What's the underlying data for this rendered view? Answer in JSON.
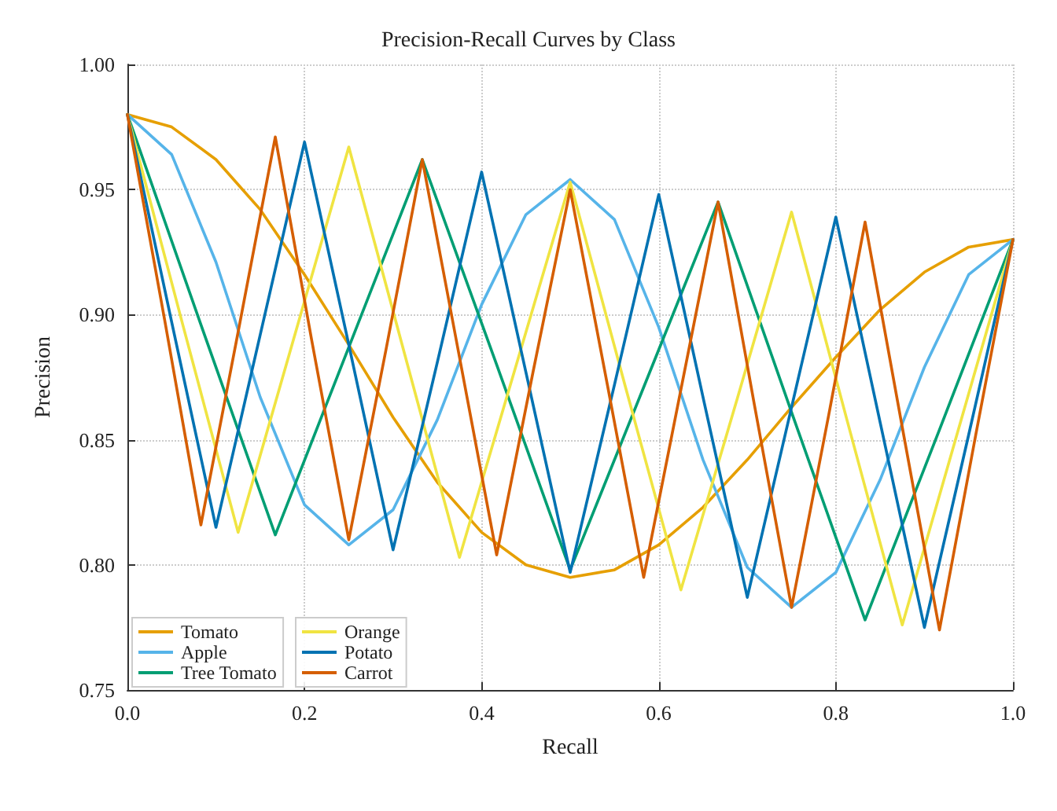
{
  "chart_data": {
    "type": "line",
    "title": "Precision-Recall Curves by Class",
    "xlabel": "Recall",
    "ylabel": "Precision",
    "xlim": [
      0,
      1
    ],
    "ylim": [
      0.75,
      1.0
    ],
    "xticks": [
      {
        "value": 0,
        "label": "0.0"
      },
      {
        "value": 0.2,
        "label": "0.2"
      },
      {
        "value": 0.4,
        "label": "0.4"
      },
      {
        "value": 0.6,
        "label": "0.6"
      },
      {
        "value": 0.8,
        "label": "0.8"
      },
      {
        "value": 1,
        "label": "1.0"
      }
    ],
    "yticks": [
      0.75,
      {
        "value": 0.8,
        "label": "0.80"
      },
      0.85,
      {
        "value": 0.9,
        "label": "0.90"
      },
      0.95,
      {
        "value": 1.0,
        "label": "1.00"
      }
    ],
    "grid": true,
    "legend": "bottom left",
    "marker": "none",
    "line_style": "solid",
    "series": [
      {
        "name": "Tomato",
        "color": "#e69f00",
        "x": [
          0,
          0.05,
          0.1,
          0.15,
          0.2,
          0.25,
          0.3,
          0.35,
          0.4,
          0.45,
          0.5,
          0.55,
          0.6,
          0.65,
          0.7,
          0.75,
          0.8,
          0.85,
          0.9,
          0.95,
          1.0
        ],
        "values": [
          0.98,
          0.975,
          0.962,
          0.942,
          0.916,
          0.888,
          0.859,
          0.833,
          0.813,
          0.8,
          0.795,
          0.798,
          0.808,
          0.823,
          0.842,
          0.863,
          0.883,
          0.902,
          0.917,
          0.927,
          0.93
        ]
      },
      {
        "name": "Apple",
        "color": "#56b4e9",
        "x": [
          0,
          0.05,
          0.1,
          0.15,
          0.2,
          0.25,
          0.3,
          0.35,
          0.4,
          0.45,
          0.5,
          0.55,
          0.6,
          0.65,
          0.7,
          0.75,
          0.8,
          0.85,
          0.9,
          0.95,
          1.0
        ],
        "values": [
          0.98,
          0.964,
          0.921,
          0.867,
          0.824,
          0.808,
          0.822,
          0.858,
          0.904,
          0.94,
          0.954,
          0.938,
          0.895,
          0.842,
          0.799,
          0.783,
          0.797,
          0.834,
          0.879,
          0.916,
          0.93
        ]
      },
      {
        "name": "Tree Tomato",
        "color": "#009e73",
        "x": [
          0,
          0.083,
          0.167,
          0.25,
          0.333,
          0.417,
          0.5,
          0.583,
          0.667,
          0.75,
          0.833,
          0.917,
          1.0
        ],
        "values": [
          0.98,
          0.896,
          0.812,
          0.887,
          0.962,
          0.88,
          0.798,
          0.871,
          0.945,
          0.861,
          0.778,
          0.854,
          0.93
        ]
      },
      {
        "name": "Orange",
        "color": "#f0e442",
        "x": [
          0,
          0.0625,
          0.125,
          0.1875,
          0.25,
          0.3125,
          0.375,
          0.4375,
          0.5,
          0.5625,
          0.625,
          0.6875,
          0.75,
          0.8125,
          0.875,
          0.9375,
          1.0
        ],
        "values": [
          0.98,
          0.896,
          0.813,
          0.89,
          0.967,
          0.885,
          0.803,
          0.878,
          0.953,
          0.871,
          0.79,
          0.865,
          0.941,
          0.858,
          0.776,
          0.853,
          0.93
        ]
      },
      {
        "name": "Potato",
        "color": "#0072b2",
        "x": [
          0,
          0.05,
          0.1,
          0.15,
          0.2,
          0.25,
          0.3,
          0.35,
          0.4,
          0.45,
          0.5,
          0.55,
          0.6,
          0.65,
          0.7,
          0.75,
          0.8,
          0.85,
          0.9,
          0.95,
          1.0
        ],
        "values": [
          0.98,
          0.897,
          0.815,
          0.892,
          0.969,
          0.888,
          0.806,
          0.881,
          0.957,
          0.877,
          0.797,
          0.872,
          0.948,
          0.867,
          0.787,
          0.863,
          0.939,
          0.857,
          0.775,
          0.852,
          0.93
        ]
      },
      {
        "name": "Carrot",
        "color": "#d55e00",
        "x": [
          0,
          0.042,
          0.083,
          0.125,
          0.167,
          0.208,
          0.25,
          0.292,
          0.333,
          0.375,
          0.417,
          0.458,
          0.5,
          0.542,
          0.583,
          0.625,
          0.667,
          0.708,
          0.75,
          0.792,
          0.833,
          0.875,
          0.917,
          0.958,
          1.0
        ],
        "values": [
          0.98,
          0.898,
          0.816,
          0.893,
          0.971,
          0.89,
          0.81,
          0.886,
          0.962,
          0.883,
          0.804,
          0.877,
          0.95,
          0.872,
          0.795,
          0.87,
          0.945,
          0.864,
          0.783,
          0.86,
          0.937,
          0.855,
          0.774,
          0.852,
          0.93
        ]
      }
    ]
  }
}
